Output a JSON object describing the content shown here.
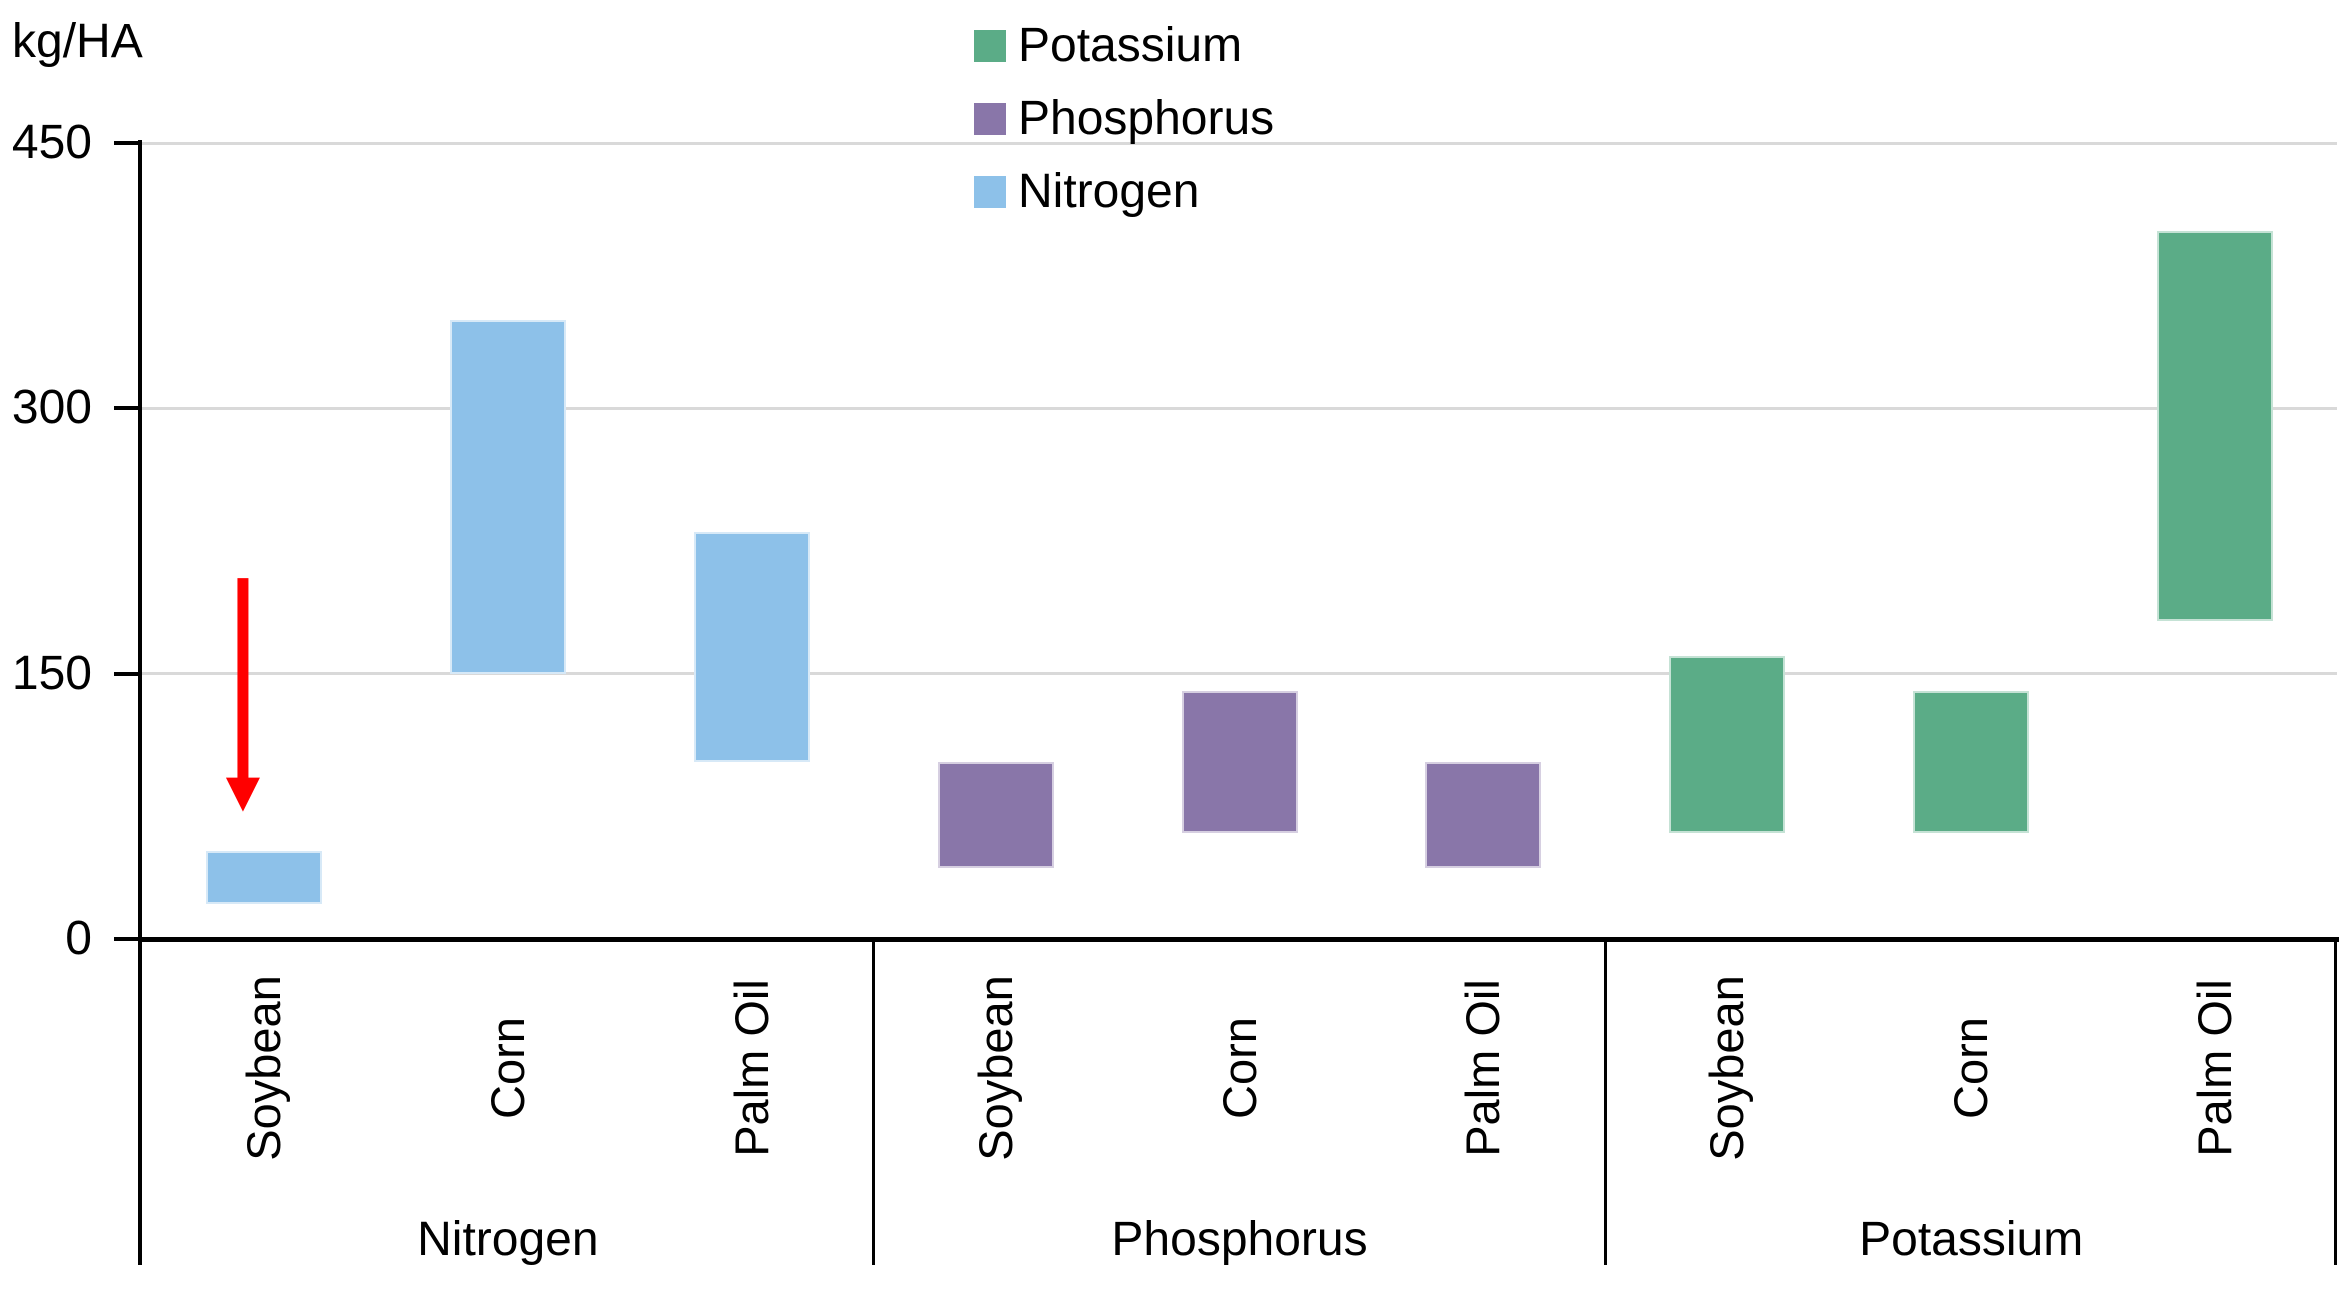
{
  "unit_label": "kg/HA",
  "legend": {
    "items": [
      {
        "label": "Potassium",
        "color": "#5BAC87"
      },
      {
        "label": "Phosphorus",
        "color": "#8976A9"
      },
      {
        "label": "Nitrogen",
        "color": "#8DC1E9"
      }
    ]
  },
  "chart_data": {
    "type": "bar",
    "subtype": "floating_range_columns",
    "title": "",
    "ylabel": "kg/HA",
    "ylim": [
      0,
      450
    ],
    "yticks": [
      0,
      150,
      300,
      450
    ],
    "grid": "horizontal",
    "gridline_color": "#D9D9D9",
    "legend_position": "top-center-vertical",
    "categories": [
      "Soybean",
      "Corn",
      "Palm Oil"
    ],
    "groups": [
      {
        "label": "Nitrogen",
        "color": "#8DC1E9",
        "bars": [
          {
            "category": "Soybean",
            "low": 20,
            "high": 50
          },
          {
            "category": "Corn",
            "low": 150,
            "high": 350
          },
          {
            "category": "Palm Oil",
            "low": 100,
            "high": 230
          }
        ]
      },
      {
        "label": "Phosphorus",
        "color": "#8976A9",
        "bars": [
          {
            "category": "Soybean",
            "low": 40,
            "high": 100
          },
          {
            "category": "Corn",
            "low": 60,
            "high": 140
          },
          {
            "category": "Palm Oil",
            "low": 40,
            "high": 100
          }
        ]
      },
      {
        "label": "Potassium",
        "color": "#5BAC87",
        "bars": [
          {
            "category": "Soybean",
            "low": 60,
            "high": 160
          },
          {
            "category": "Corn",
            "low": 60,
            "high": 140
          },
          {
            "category": "Palm Oil",
            "low": 180,
            "high": 400
          }
        ]
      }
    ],
    "annotation": {
      "shape": "down-arrow",
      "color": "#FF0000",
      "target_group": "Nitrogen",
      "target_category": "Soybean",
      "from_value": 204,
      "to_value": 72
    }
  }
}
